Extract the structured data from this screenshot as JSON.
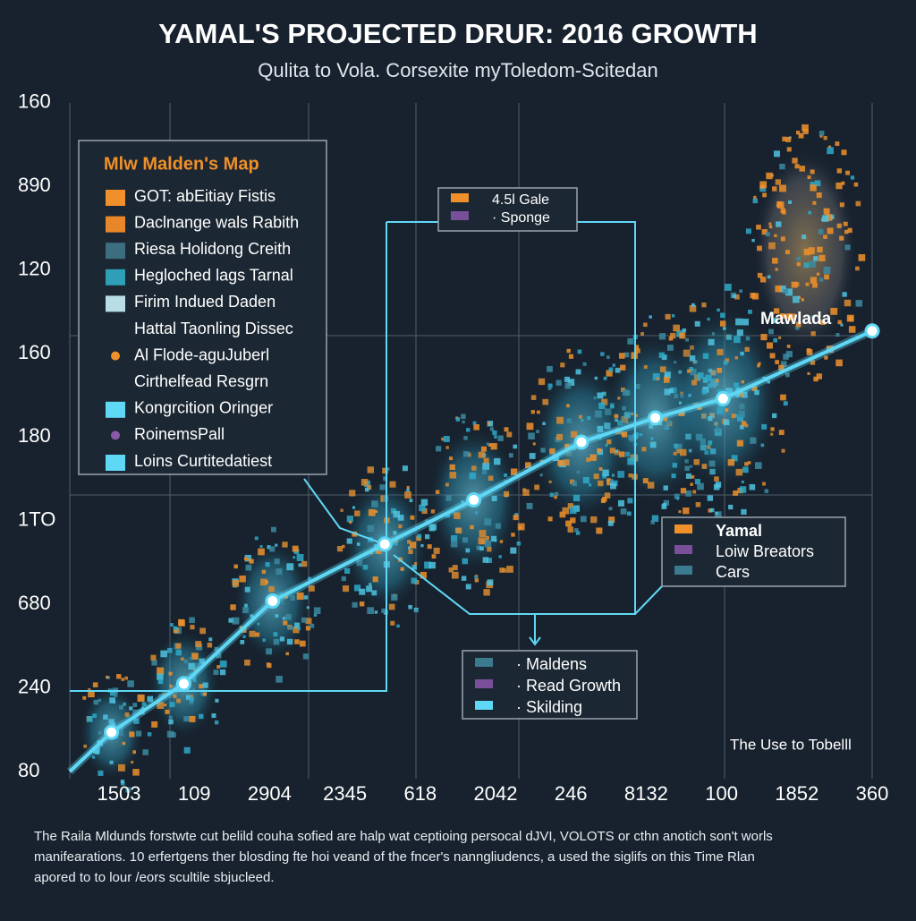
{
  "chart_data": {
    "type": "line",
    "title": "YAMAL'S PROJECTED DRUR: 2016 GROWTH",
    "subtitle": "Qulita to Vola. Corsexite myToledom-Scitedan",
    "y_categories": [
      "80",
      "240",
      "680",
      "1TO",
      "180",
      "160",
      "120",
      "890",
      "160"
    ],
    "categories": [
      "1503",
      "109",
      "2904",
      "2345",
      "618",
      "2042",
      "246",
      "8132",
      "100",
      "1852",
      "360"
    ],
    "x": [
      -0.1,
      0.86,
      2.04,
      3.53,
      4.71,
      6.14,
      7.12,
      8.02,
      10.0
    ],
    "values": [
      0.47,
      1.05,
      2.04,
      2.72,
      3.25,
      3.94,
      4.23,
      4.46,
      5.27
    ],
    "color": "#5fd8f5",
    "legend_boxes": [
      {
        "title": "Mlw Malden's Map",
        "items": [
          {
            "label": "GOT: abEitiay Fistis",
            "color": "#f0902a"
          },
          {
            "label": "Daclnange wals Rabith",
            "color": "#e8872a"
          },
          {
            "label": "Riesa Holidong Creith",
            "color": "#3c6e80"
          },
          {
            "label": "Hegloched lags Tarnal",
            "color": "#2f9fb8"
          },
          {
            "label": "Firim Indued Daden",
            "color": "#b8dde6"
          },
          {
            "label": "Hattal Taonling Dissec"
          },
          {
            "label": "Al Flode-aguJuberl",
            "color": "#f0902a",
            "marker": "dot"
          },
          {
            "label": "Cirthelfead Resgrn"
          },
          {
            "label": "Kongrcition Oringer",
            "color": "#5fd8f5"
          },
          {
            "label": "RoinemsPall",
            "color": "#8a5aa8",
            "marker": "dot"
          },
          {
            "label": "Loins Curtitedatiest",
            "color": "#5fd8f5"
          }
        ]
      },
      {
        "items": [
          {
            "label": "4.5l Gale",
            "color": "#f0902a"
          },
          {
            "label": "· Sponge",
            "color": "#7a4f9a"
          }
        ]
      },
      {
        "items": [
          {
            "label": "Yamal",
            "color": "#f0902a"
          },
          {
            "label": "Loiw Breators",
            "color": "#7a4f9a"
          },
          {
            "label": "Cars",
            "color": "#3c7a90"
          }
        ]
      },
      {
        "items": [
          {
            "label": "· Maldens",
            "color": "#3c7a90"
          },
          {
            "label": "· Read Growth",
            "color": "#7a4f9a"
          },
          {
            "label": "· Skilding",
            "color": "#5fd8f5"
          }
        ]
      }
    ],
    "annotations": [
      "Mawlada",
      "The Use to Tobelll"
    ],
    "footnote": [
      "The Raila Mldunds forstwte cut belild couha sofied are halp wat ceptioing persocal dJVI, VOLOTS or cthn anotich son't worls",
      "manifearations. 10 erfertgens ther blosding fte hoi veand of the fncer's nanngliudencs, a used the siglifs on this Time Rlan",
      "apored to to lour /eors scultile sbjucleed."
    ]
  }
}
